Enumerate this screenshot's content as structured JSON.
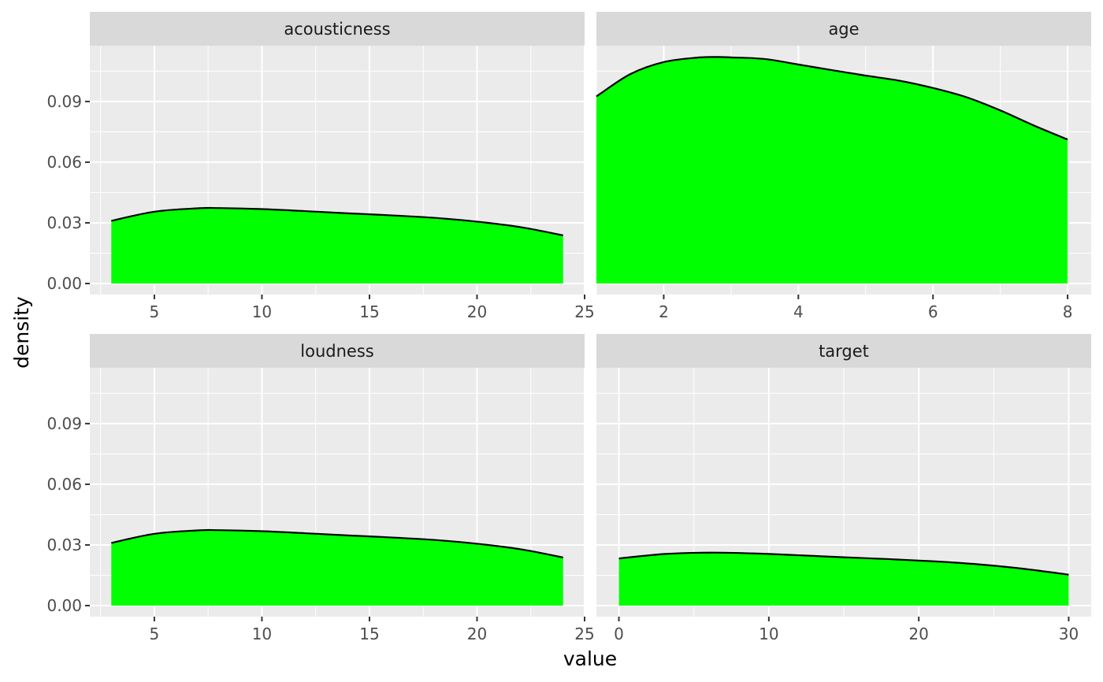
{
  "chart_data": {
    "type": "area",
    "subtype": "faceted density plot",
    "xlabel": "value",
    "ylabel": "density",
    "fill_color": "#00ff00",
    "line_color": "#000000",
    "panel_background": "#ebebeb",
    "strip_background": "#d9d9d9",
    "grid": true,
    "layout": "2x2 facets, free x scales, shared y scale",
    "ylim": [
      0,
      0.12
    ],
    "y_ticks": [
      0.0,
      0.03,
      0.06,
      0.09
    ],
    "y_tick_labels": [
      "0.00",
      "0.03",
      "0.06",
      "0.09"
    ],
    "facets": [
      {
        "title": "acousticness",
        "xlim": [
          2,
          25
        ],
        "x_ticks": [
          5,
          10,
          15,
          20,
          25
        ],
        "x_tick_labels": [
          "5",
          "10",
          "15",
          "20",
          "25"
        ],
        "x": [
          3,
          5,
          7,
          8,
          10,
          12,
          14,
          16,
          18,
          20,
          22,
          24
        ],
        "density": [
          0.031,
          0.0355,
          0.0372,
          0.0373,
          0.0368,
          0.0358,
          0.0347,
          0.0337,
          0.0325,
          0.0306,
          0.0279,
          0.0238
        ]
      },
      {
        "title": "age",
        "xlim": [
          1,
          8.35
        ],
        "x_ticks": [
          2,
          4,
          6,
          8
        ],
        "x_tick_labels": [
          "2",
          "4",
          "6",
          "8"
        ],
        "x": [
          1,
          1.5,
          2,
          2.5,
          2.8,
          3,
          3.5,
          4,
          4.5,
          5,
          5.5,
          6,
          6.5,
          7,
          7.5,
          8
        ],
        "density": [
          0.0925,
          0.1035,
          0.1095,
          0.1117,
          0.112,
          0.1118,
          0.111,
          0.1083,
          0.1055,
          0.1028,
          0.1003,
          0.0967,
          0.0921,
          0.0856,
          0.0781,
          0.0712
        ]
      },
      {
        "title": "loudness",
        "xlim": [
          2,
          25
        ],
        "x_ticks": [
          5,
          10,
          15,
          20,
          25
        ],
        "x_tick_labels": [
          "5",
          "10",
          "15",
          "20",
          "25"
        ],
        "x": [
          3,
          5,
          7,
          8,
          10,
          12,
          14,
          16,
          18,
          20,
          22,
          24
        ],
        "density": [
          0.031,
          0.0355,
          0.0372,
          0.0373,
          0.0368,
          0.0358,
          0.0347,
          0.0337,
          0.0325,
          0.0306,
          0.0279,
          0.0238
        ]
      },
      {
        "title": "target",
        "xlim": [
          -1.5,
          31.5
        ],
        "x_ticks": [
          0,
          10,
          20,
          30
        ],
        "x_tick_labels": [
          "0",
          "10",
          "20",
          "30"
        ],
        "x": [
          0,
          3,
          6,
          9,
          12,
          15,
          18,
          21,
          24,
          27,
          30
        ],
        "density": [
          0.0233,
          0.0255,
          0.0262,
          0.0258,
          0.0249,
          0.0239,
          0.023,
          0.0219,
          0.0204,
          0.0182,
          0.0153
        ]
      }
    ]
  }
}
